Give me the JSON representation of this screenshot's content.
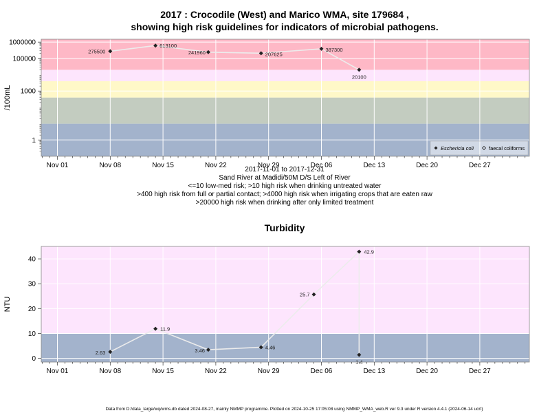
{
  "chart_data": [
    {
      "type": "line",
      "title_lines": [
        "2017 : Crocodile (West) and Marico WMA, site 179684 ,",
        "showing high risk guidelines for indicators of microbial pathogens."
      ],
      "ylabel": "/100mL",
      "y_scale": "log",
      "ylim": [
        0.1,
        1500000
      ],
      "y_ticks": [
        {
          "value": 1,
          "label": "1"
        },
        {
          "value": 1000,
          "label": "1000"
        },
        {
          "value": 100000,
          "label": "100000"
        },
        {
          "value": 1000000,
          "label": "1000000"
        }
      ],
      "x_ticks": [
        "Nov 01",
        "Nov 08",
        "Nov 15",
        "Nov 22",
        "Nov 29",
        "Dec 06",
        "Dec 13",
        "Dec 20",
        "Dec 27"
      ],
      "bands": [
        {
          "from": 0.1,
          "to": 10,
          "color": "#a3b3cc"
        },
        {
          "from": 10,
          "to": 400,
          "color": "#c3ccc0"
        },
        {
          "from": 400,
          "to": 4000,
          "color": "#fff8c8"
        },
        {
          "from": 4000,
          "to": 20000,
          "color": "#fde5fd"
        },
        {
          "from": 20000,
          "to": 1500000,
          "color": "#feb8c6"
        }
      ],
      "series": [
        {
          "name": "Eschericia coli",
          "marker": "diamond-filled",
          "points": [
            {
              "day": 7,
              "value": 275500,
              "label": "275500"
            },
            {
              "day": 13,
              "value": 613100,
              "label": "613100"
            },
            {
              "day": 20,
              "value": 241960,
              "label": "241960"
            },
            {
              "day": 27,
              "value": 207625,
              "label": "207625"
            },
            {
              "day": 35,
              "value": 387300,
              "label": "387300"
            },
            {
              "day": 40,
              "value": 20100,
              "label": "20100"
            }
          ]
        },
        {
          "name": "faecal coliforms",
          "marker": "diamond-open",
          "points": []
        }
      ],
      "legend_position": "bottom-right",
      "caption_lines": [
        "2017-11-01 to 2017-12-31",
        "Sand River at Madidi/50M D/S Left of River",
        "<=10 low-med risk; >10 high risk when drinking untreated water",
        ">400 high risk from full or partial contact; >4000 high risk when irrigating crops that are eaten raw",
        ">20000 high risk when drinking after only limited treatment"
      ]
    },
    {
      "type": "line",
      "title": "Turbidity",
      "ylabel": "NTU",
      "ylim": [
        -1.5,
        45
      ],
      "y_ticks": [
        0,
        10,
        20,
        30,
        40
      ],
      "x_ticks": [
        "Nov 01",
        "Nov 08",
        "Nov 15",
        "Nov 22",
        "Nov 29",
        "Dec 06",
        "Dec 13",
        "Dec 20",
        "Dec 27"
      ],
      "bands": [
        {
          "from": -1.5,
          "to": 10,
          "color": "#a3b3cc"
        },
        {
          "from": 10,
          "to": 45,
          "color": "#fde5fd"
        }
      ],
      "series": [
        {
          "points": [
            {
              "day": 7,
              "value": 2.63,
              "label": "2.63"
            },
            {
              "day": 13,
              "value": 11.9,
              "label": "11.9"
            },
            {
              "day": 20,
              "value": 3.46,
              "label": "3.46"
            },
            {
              "day": 27,
              "value": 4.46,
              "label": "4.46"
            },
            {
              "day": 34,
              "value": 25.7,
              "label": "25.7"
            },
            {
              "day": 40,
              "value": 42.9,
              "label": "42.9"
            },
            {
              "day": 40,
              "value": 1.4,
              "label": "1.4"
            }
          ]
        }
      ]
    }
  ],
  "footer": "Data from D:/data_large/wq/wms.db dated 2024-08-27, mainly NMMP programme. Plotted on 2024-10-25 17:05:08 using NMMP_WMA_web.R ver 9.3 under R version 4.4.1 (2024-06-14 ucrt)"
}
